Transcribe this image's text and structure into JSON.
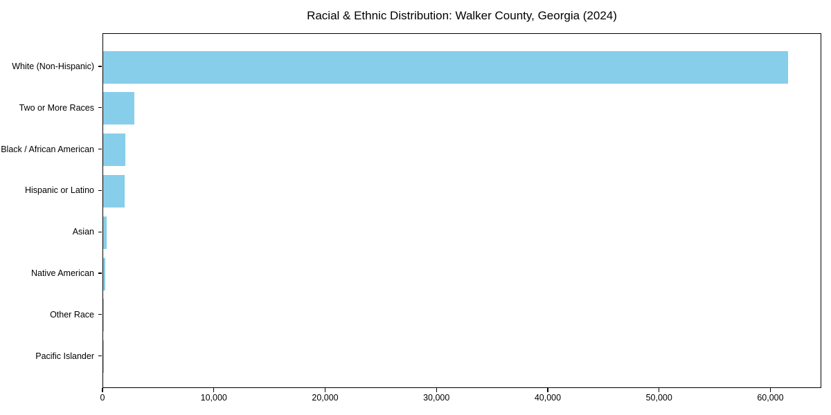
{
  "chart_data": {
    "type": "bar",
    "orientation": "horizontal",
    "title": "Racial & Ethnic Distribution: Walker County, Georgia (2024)",
    "categories": [
      "White (Non-Hispanic)",
      "Two or More Races",
      "Black / African American",
      "Hispanic or Latino",
      "Asian",
      "Native American",
      "Other Race",
      "Pacific Islander"
    ],
    "values": [
      61500,
      2790,
      2010,
      1930,
      280,
      210,
      60,
      20
    ],
    "xlabel": "",
    "ylabel": "",
    "xlim": [
      0,
      64575
    ],
    "xticks": [
      0,
      10000,
      20000,
      30000,
      40000,
      50000,
      60000
    ],
    "xtick_labels": [
      "0",
      "10,000",
      "20,000",
      "30,000",
      "40,000",
      "50,000",
      "60,000"
    ],
    "bar_color": "#87CEEB",
    "axis_color": "#000000",
    "background_color": "#ffffff",
    "grid": false,
    "legend": "none"
  }
}
